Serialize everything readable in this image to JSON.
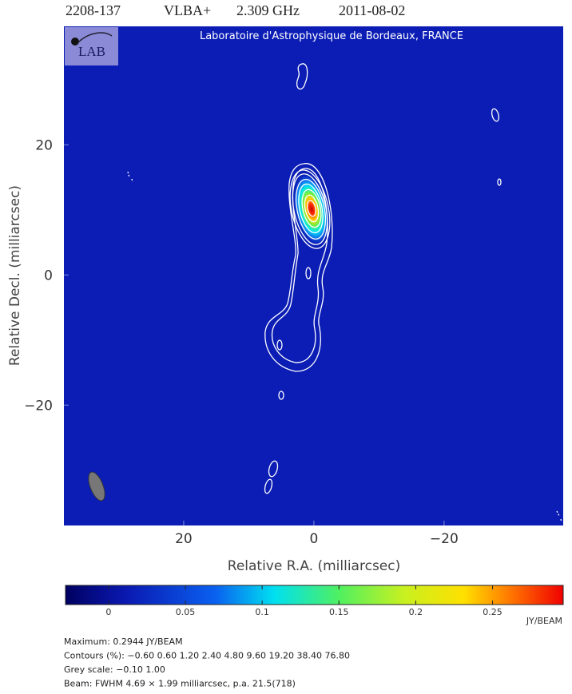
{
  "chart_data": {
    "type": "image",
    "title": [
      "2208-137",
      "VLBA+",
      "2.309 GHz",
      "2011-08-02"
    ],
    "annotation": "Laboratoire d'Astrophysique de Bordeaux, FRANCE",
    "logo": "LAB",
    "xlabel": "Relative R.A. (milliarcsec)",
    "ylabel": "Relative Decl. (milliarcsec)",
    "xlim": [
      38.4,
      -38.3
    ],
    "ylim": [
      -38.5,
      38.2
    ],
    "xticks": [
      20,
      0,
      {
        "value": -20,
        "label": "−20"
      }
    ],
    "yticks": [
      {
        "value": -20,
        "label": "−20"
      },
      0,
      20
    ],
    "colorbar": {
      "lim": [
        -0.028,
        0.296
      ],
      "ticks": [
        0,
        0.05,
        0.1,
        0.15,
        0.2,
        0.25
      ],
      "unit": "JY/BEAM"
    },
    "info": [
      "Maximum: 0.2944 JY/BEAM",
      "Contours (%): −0.60 0.60 1.20 2.40 4.80 9.60 19.20 38.40 76.80",
      "Grey scale: −0.10 1.00",
      "Beam: FWHM 4.69 × 1.99 milliarcsec, p.a. 21.5(718)"
    ]
  }
}
